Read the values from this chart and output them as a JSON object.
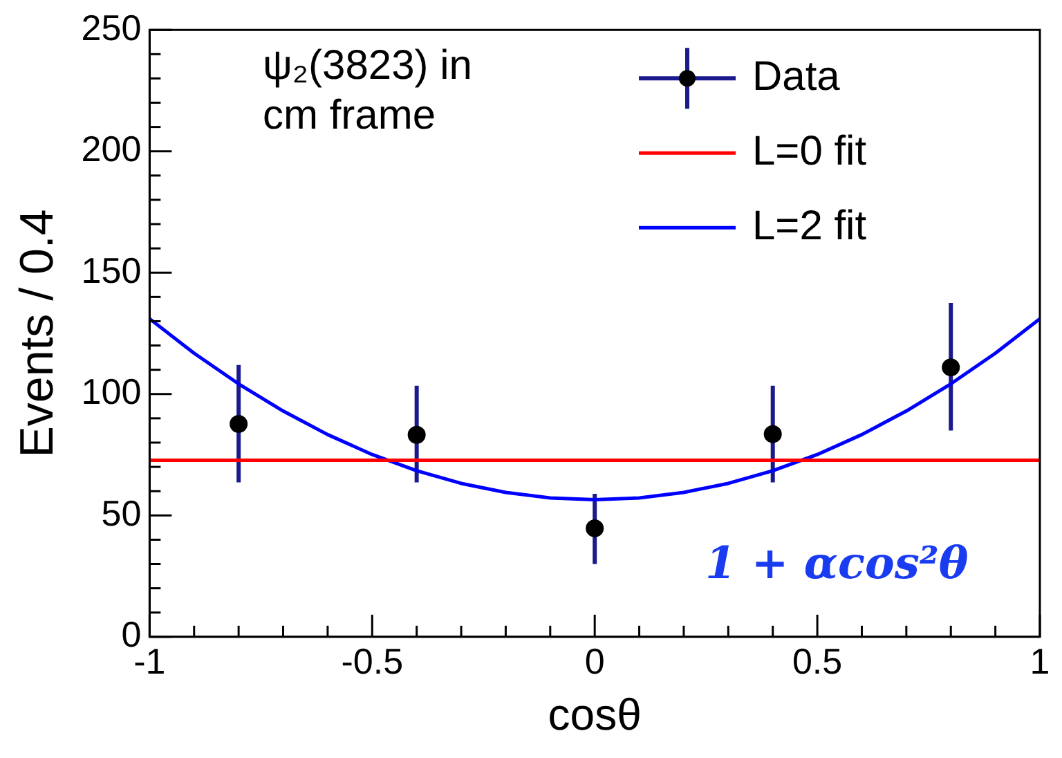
{
  "chart_data": {
    "type": "scatter",
    "xlabel": "cosθ",
    "ylabel": "Events / 0.4",
    "xlim": [
      -1,
      1
    ],
    "xticks": [
      -1,
      {
        "value": -0.9,
        "label": null
      },
      {
        "value": -0.8,
        "label": null
      },
      {
        "value": -0.7,
        "label": null
      },
      {
        "value": -0.6,
        "label": null
      },
      -0.5,
      {
        "value": -0.4,
        "label": null
      },
      {
        "value": -0.3,
        "label": null
      },
      {
        "value": -0.2,
        "label": null
      },
      {
        "value": -0.1,
        "label": null
      },
      0,
      {
        "value": 0.1,
        "label": null
      },
      {
        "value": 0.2,
        "label": null
      },
      {
        "value": 0.3,
        "label": null
      },
      {
        "value": 0.4,
        "label": null
      },
      0.5,
      {
        "value": 0.6,
        "label": null
      },
      {
        "value": 0.7,
        "label": null
      },
      {
        "value": 0.8,
        "label": null
      },
      {
        "value": 0.9,
        "label": null
      },
      1
    ],
    "ylim": [
      0,
      250
    ],
    "yticks": [
      0,
      {
        "value": 10,
        "label": null
      },
      {
        "value": 20,
        "label": null
      },
      {
        "value": 30,
        "label": null
      },
      {
        "value": 40,
        "label": null
      },
      50,
      {
        "value": 60,
        "label": null
      },
      {
        "value": 70,
        "label": null
      },
      {
        "value": 80,
        "label": null
      },
      {
        "value": 90,
        "label": null
      },
      100,
      {
        "value": 110,
        "label": null
      },
      {
        "value": 120,
        "label": null
      },
      {
        "value": 130,
        "label": null
      },
      {
        "value": 140,
        "label": null
      },
      150,
      {
        "value": 160,
        "label": null
      },
      {
        "value": 170,
        "label": null
      },
      {
        "value": 180,
        "label": null
      },
      {
        "value": 190,
        "label": null
      },
      200,
      {
        "value": 210,
        "label": null
      },
      {
        "value": 220,
        "label": null
      },
      {
        "value": 230,
        "label": null
      },
      {
        "value": 240,
        "label": null
      },
      250
    ],
    "grid": false,
    "legend": "top right",
    "series": [
      {
        "name": "Data",
        "type": "scatter",
        "marker": "circle",
        "color": "#000000",
        "x": [
          -0.8,
          -0.4,
          0,
          0.4,
          0.8
        ],
        "values": [
          87.7,
          83.2,
          44.7,
          83.5,
          111
        ],
        "errors": [
          [
            63.6,
            112
          ],
          [
            63.6,
            103.4
          ],
          [
            30,
            58.9
          ],
          [
            63.6,
            103.4
          ],
          [
            85,
            137.5
          ]
        ]
      },
      {
        "name": "L=0 fit",
        "type": "line",
        "marker": "none",
        "color": "#ff0000",
        "x": [
          -1,
          1
        ],
        "values": [
          72.7,
          72.7
        ]
      },
      {
        "name": "L=2 fit",
        "type": "line",
        "marker": "none",
        "color": "#0000ff",
        "x": [
          -1,
          -0.9,
          -0.8,
          -0.7,
          -0.6,
          -0.5,
          -0.4,
          -0.3,
          -0.2,
          -0.1,
          0,
          0.1,
          0.2,
          0.3,
          0.4,
          0.5,
          0.6,
          0.7,
          0.8,
          0.9,
          1
        ],
        "values": [
          131,
          116.8,
          104.2,
          93,
          83.3,
          75.1,
          68.4,
          63.2,
          59.5,
          57.2,
          56.5,
          57.2,
          59.5,
          63.2,
          68.4,
          75.1,
          83.3,
          93,
          104.2,
          116.8,
          131
        ]
      }
    ],
    "annotations": [
      "ψ₂(3823) in cm frame",
      "1 + αcos²θ"
    ]
  }
}
